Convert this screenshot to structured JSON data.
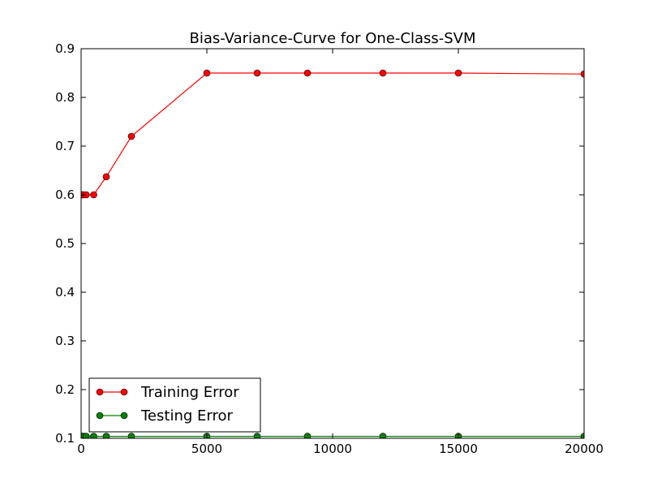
{
  "chart_data": {
    "type": "line",
    "title": "Bias-Variance-Curve for One-Class-SVM",
    "xlabel": "",
    "ylabel": "",
    "xlim": [
      0,
      20000
    ],
    "ylim": [
      0.1,
      0.9
    ],
    "xticks": [
      0,
      5000,
      10000,
      15000,
      20000
    ],
    "xtick_labels": [
      "0",
      "5000",
      "10000",
      "15000",
      "20000"
    ],
    "yticks": [
      0.1,
      0.2,
      0.3,
      0.4,
      0.5,
      0.6,
      0.7,
      0.8,
      0.9
    ],
    "ytick_labels": [
      "0.1",
      "0.2",
      "0.3",
      "0.4",
      "0.5",
      "0.6",
      "0.7",
      "0.8",
      "0.9"
    ],
    "grid": false,
    "legend_position": "lower-left",
    "x": [
      50,
      100,
      200,
      500,
      1000,
      2000,
      5000,
      7000,
      9000,
      12000,
      15000,
      20000
    ],
    "series": [
      {
        "name": "Training Error",
        "color": "#ff0000",
        "marker": "circle",
        "values": [
          0.6,
          0.6,
          0.6,
          0.6,
          0.637,
          0.72,
          0.85,
          0.85,
          0.85,
          0.85,
          0.85,
          0.848
        ]
      },
      {
        "name": "Testing Error",
        "color": "#008000",
        "marker": "circle",
        "values": [
          0.104,
          0.104,
          0.104,
          0.104,
          0.104,
          0.104,
          0.104,
          0.104,
          0.104,
          0.104,
          0.104,
          0.104
        ]
      }
    ]
  }
}
